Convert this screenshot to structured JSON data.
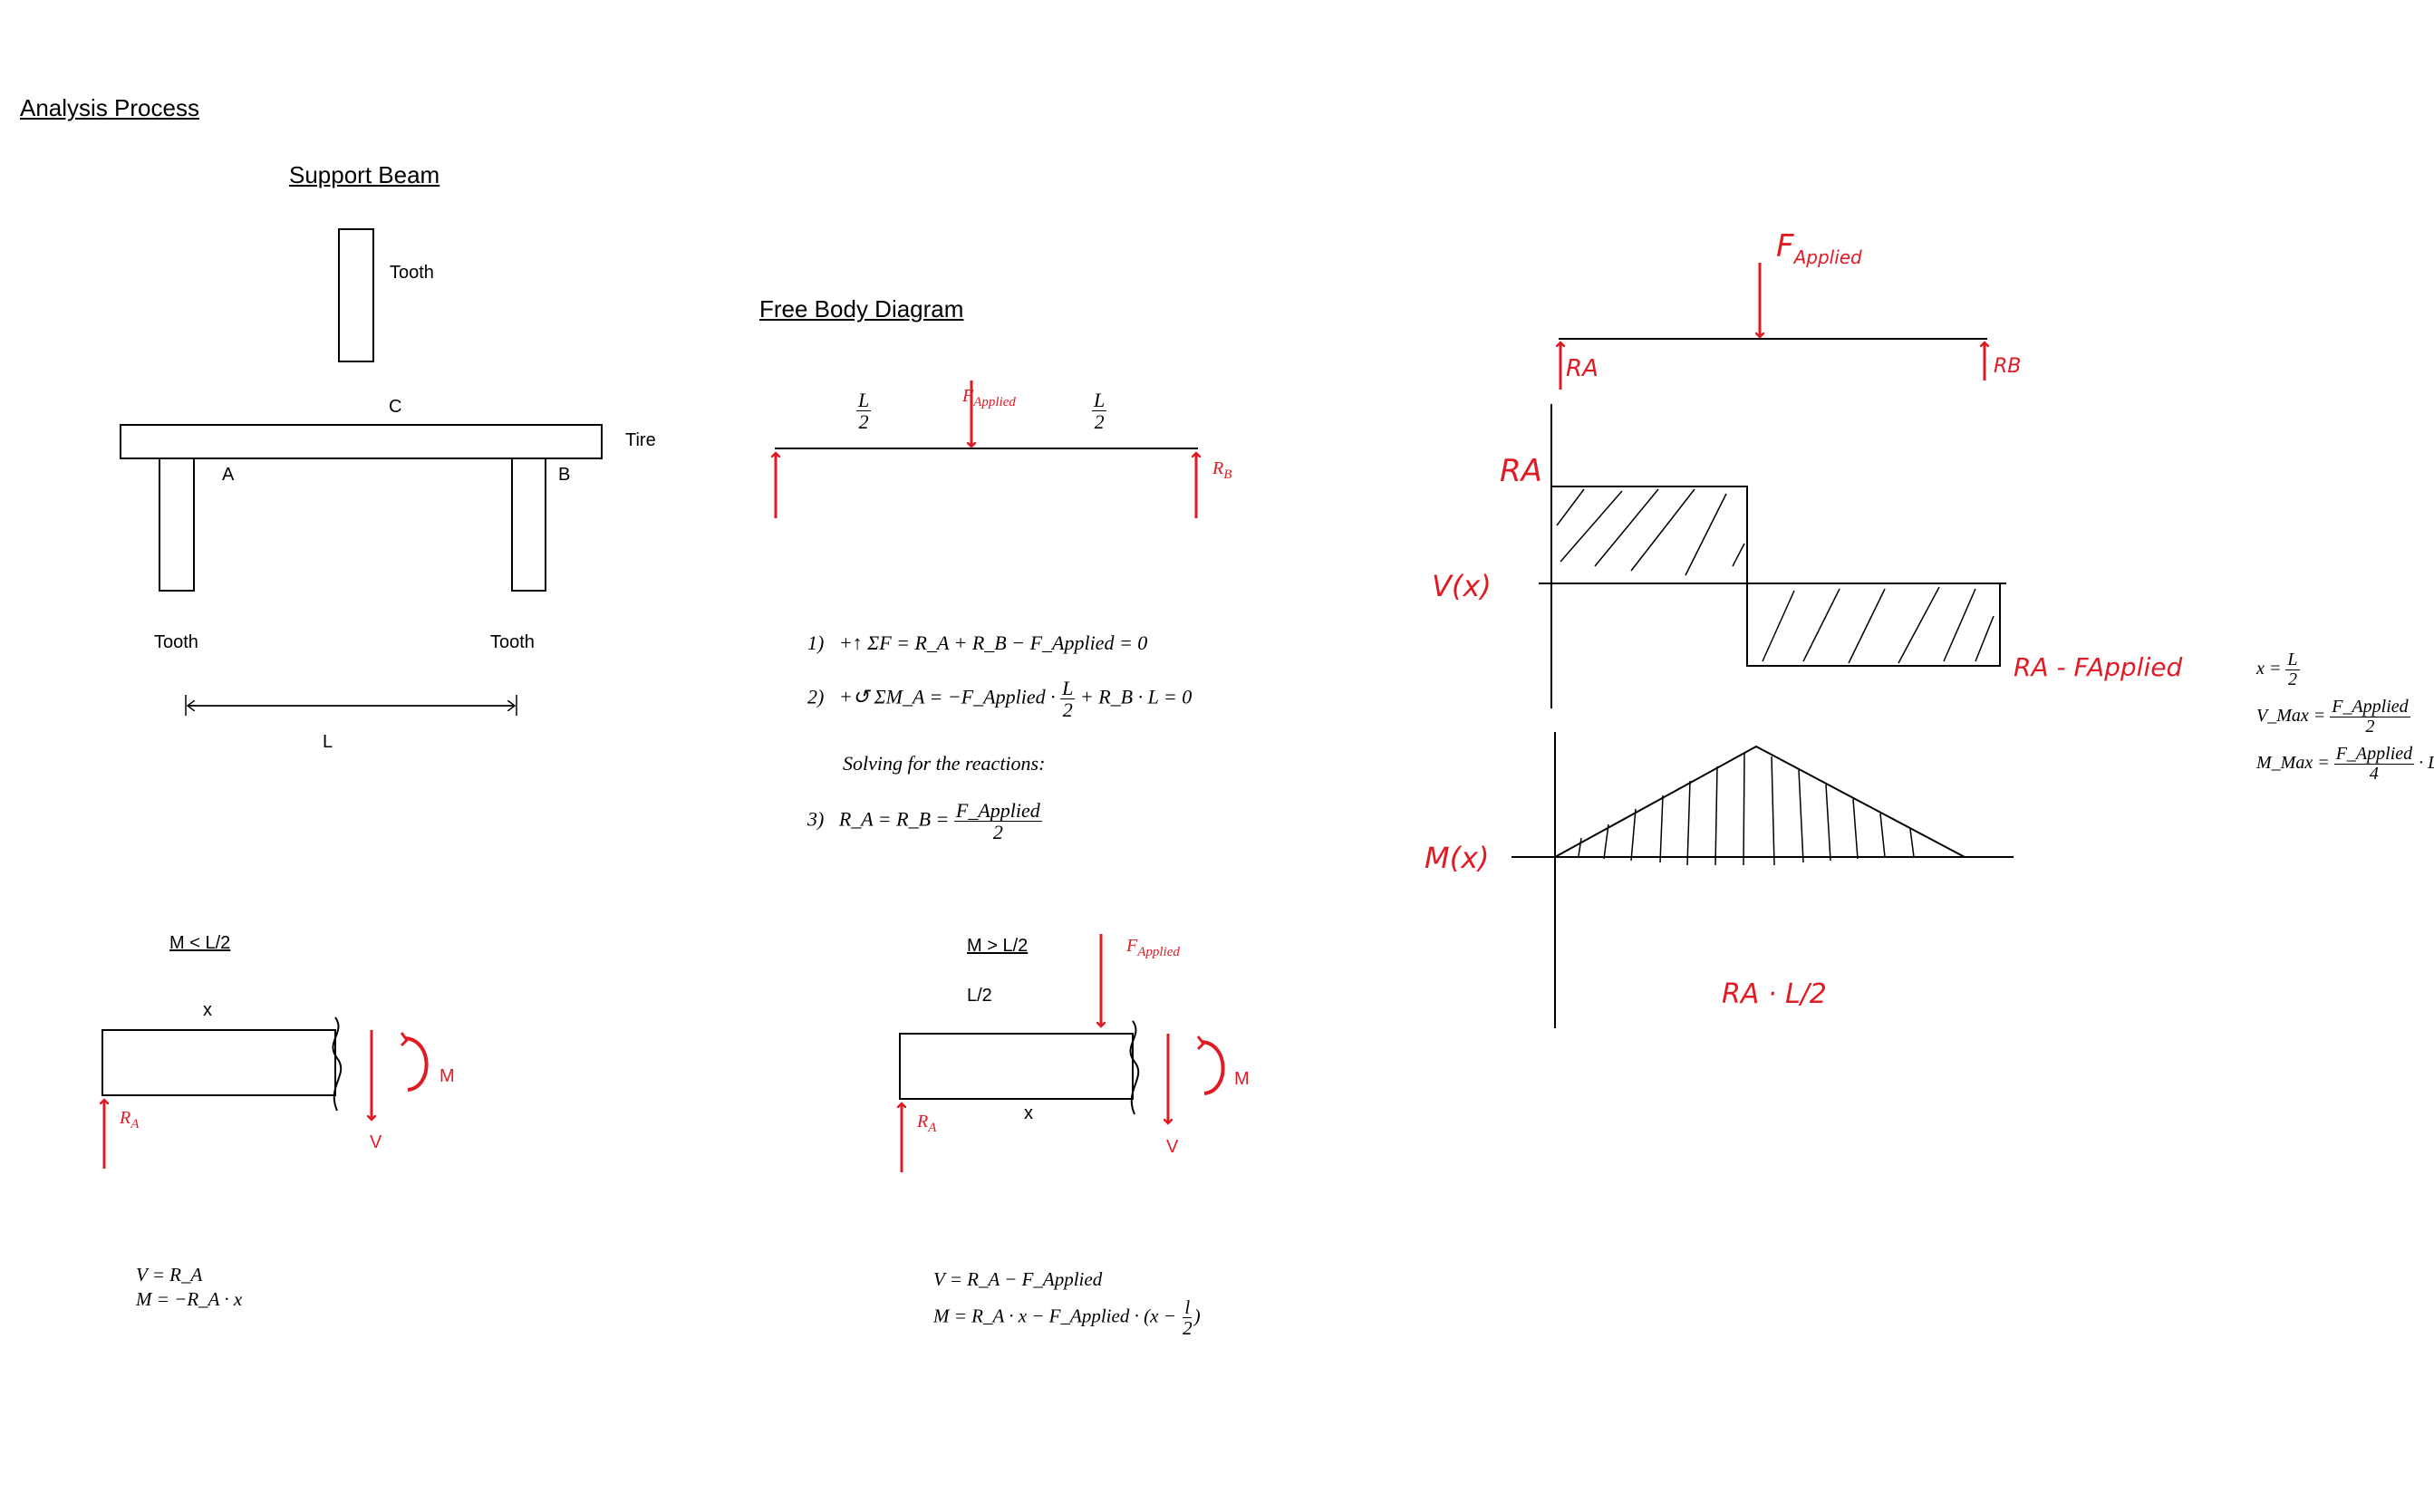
{
  "page": {
    "title": "Analysis Process",
    "support_beam": {
      "heading": "Support Beam",
      "tooth_top": "Tooth",
      "point_c": "C",
      "tire": "Tire",
      "point_a": "A",
      "point_b": "B",
      "tooth_left": "Tooth",
      "tooth_right": "Tooth",
      "length": "L"
    },
    "fbd": {
      "heading": "Free Body Diagram",
      "f_applied": "F",
      "f_applied_sub": "Applied",
      "half_num": "L",
      "half_den": "2",
      "rb": "R",
      "rb_sub": "B"
    },
    "equations": {
      "eq1_num": "1)",
      "eq1": "+↑ ΣF = R_A + R_B − F_Applied = 0",
      "eq2_num": "2)",
      "eq2_a": "+↺ ΣM_A = −F_Applied ·",
      "eq2_frac_num": "L",
      "eq2_frac_den": "2",
      "eq2_b": "+ R_B · L = 0",
      "solving": "Solving for the reactions:",
      "eq3_num": "3)",
      "eq3_a": "R_A = R_B =",
      "eq3_frac_num": "F_Applied",
      "eq3_frac_den": "2"
    },
    "section_left": {
      "heading": "M < L/2",
      "x": "x",
      "m": "M",
      "v": "V",
      "ra": "R",
      "ra_sub": "A",
      "eq_v": "V = R_A",
      "eq_m": "M = −R_A · x"
    },
    "section_right": {
      "heading": "M > L/2",
      "half": "L/2",
      "f_applied": "F",
      "f_applied_sub": "Applied",
      "x": "x",
      "m": "M",
      "v": "V",
      "ra": "R",
      "ra_sub": "A",
      "eq_v": "V = R_A  − F_Applied",
      "eq_m_a": "M = R_A · x − F_Applied · (x −",
      "eq_m_frac_num": "l",
      "eq_m_frac_den": "2",
      "eq_m_b": ")"
    },
    "sketch": {
      "f_applied": "F",
      "f_applied_sub": "Applied",
      "ra_top": "RA",
      "rb_top": "RB",
      "ra_shear": "RA",
      "v_label": "V(x)",
      "ra_minus_f": "RA - FApplied",
      "m_label": "M(x)",
      "ra_times_half": "RA · L/2"
    },
    "results": {
      "x_lhs": "x =",
      "x_num": "L",
      "x_den": "2",
      "vmax_lhs": "V_Max =",
      "vmax_num": "F_Applied",
      "vmax_den": "2",
      "mmax_lhs": "M_Max =",
      "mmax_num": "F_Applied",
      "mmax_den": "4",
      "mmax_tail": "· L"
    }
  },
  "colors": {
    "accent_red": "#e11b24",
    "ink": "#000000"
  }
}
